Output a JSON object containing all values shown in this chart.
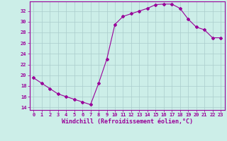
{
  "x": [
    0,
    1,
    2,
    3,
    4,
    5,
    6,
    7,
    8,
    9,
    10,
    11,
    12,
    13,
    14,
    15,
    16,
    17,
    18,
    19,
    20,
    21,
    22,
    23
  ],
  "y": [
    19.5,
    18.5,
    17.5,
    16.5,
    16.0,
    15.5,
    15.0,
    14.5,
    18.5,
    23.0,
    29.5,
    31.0,
    31.5,
    32.0,
    32.5,
    33.2,
    33.3,
    33.3,
    32.5,
    30.5,
    29.0,
    28.5,
    27.0,
    27.0
  ],
  "color": "#990099",
  "bg_color": "#cceee8",
  "grid_color": "#aacccc",
  "xlabel": "Windchill (Refroidissement éolien,°C)",
  "xlim": [
    -0.5,
    23.5
  ],
  "ylim": [
    13.5,
    33.8
  ],
  "yticks": [
    14,
    16,
    18,
    20,
    22,
    24,
    26,
    28,
    30,
    32
  ],
  "xticks": [
    0,
    1,
    2,
    3,
    4,
    5,
    6,
    7,
    8,
    9,
    10,
    11,
    12,
    13,
    14,
    15,
    16,
    17,
    18,
    19,
    20,
    21,
    22,
    23
  ],
  "tick_fontsize": 5.0,
  "xlabel_fontsize": 6.0,
  "marker": "D",
  "marker_size": 2.0,
  "line_width": 0.8
}
